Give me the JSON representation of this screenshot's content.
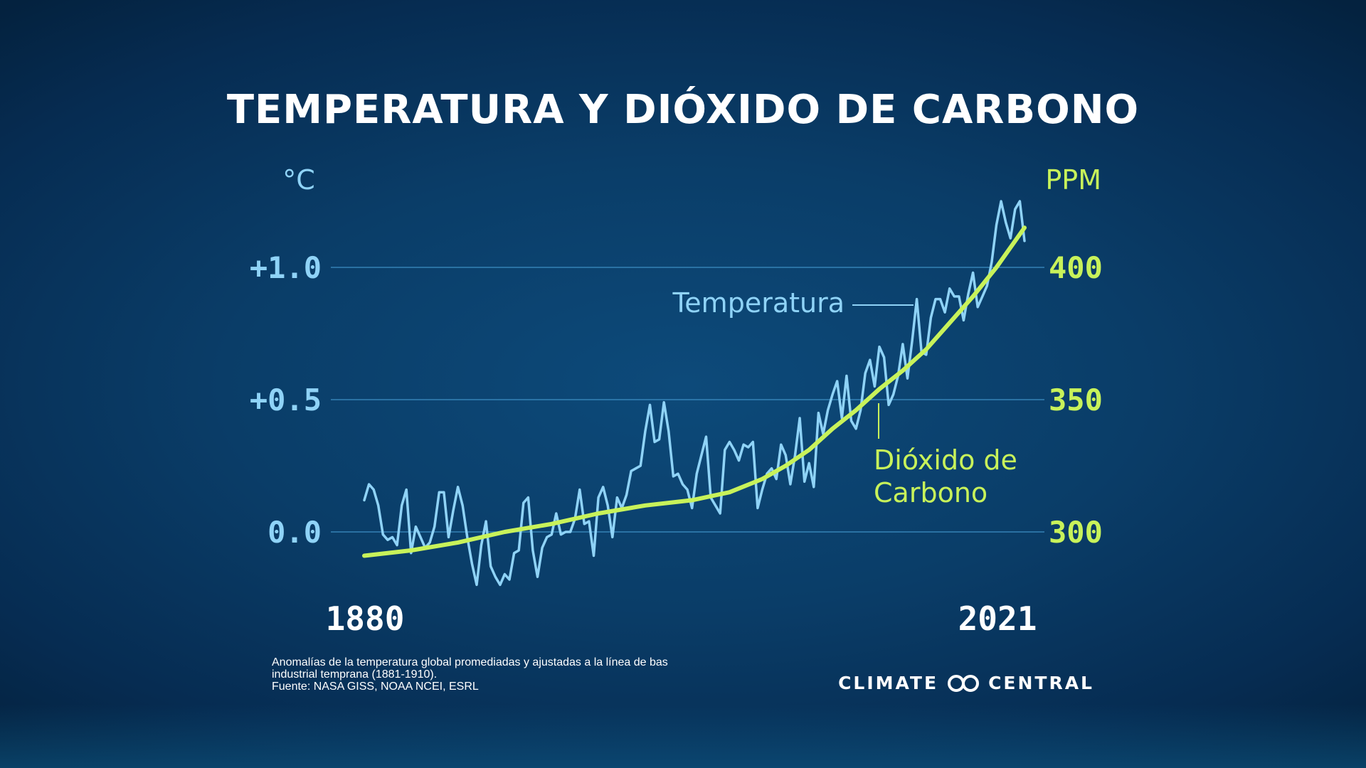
{
  "chart_data": {
    "type": "line",
    "title": "TEMPERATURA Y DIÓXIDO DE CARBONO",
    "y_left_unit": "°C",
    "y_right_unit": "PPM",
    "y_left_ticks": [
      "+1.0",
      "+0.5",
      "0.0"
    ],
    "y_left_tick_values": [
      1.0,
      0.5,
      0.0
    ],
    "y_right_ticks": [
      "400",
      "350",
      "300"
    ],
    "y_right_tick_values": [
      400,
      350,
      300
    ],
    "ylim_left": [
      -0.3,
      1.3
    ],
    "ylim_right": [
      270,
      430
    ],
    "xlim": [
      1880,
      2021
    ],
    "x_tick_labels": [
      "1880",
      "2021"
    ],
    "grid": true,
    "series": [
      {
        "name": "Temperatura",
        "axis": "left",
        "color": "#8fd3f7",
        "x": [
          1880,
          1881,
          1882,
          1883,
          1884,
          1885,
          1886,
          1887,
          1888,
          1889,
          1890,
          1891,
          1892,
          1893,
          1894,
          1895,
          1896,
          1897,
          1898,
          1899,
          1900,
          1901,
          1902,
          1903,
          1904,
          1905,
          1906,
          1907,
          1908,
          1909,
          1910,
          1911,
          1912,
          1913,
          1914,
          1915,
          1916,
          1917,
          1918,
          1919,
          1920,
          1921,
          1922,
          1923,
          1924,
          1925,
          1926,
          1927,
          1928,
          1929,
          1930,
          1931,
          1932,
          1933,
          1934,
          1935,
          1936,
          1937,
          1938,
          1939,
          1940,
          1941,
          1942,
          1943,
          1944,
          1945,
          1946,
          1947,
          1948,
          1949,
          1950,
          1951,
          1952,
          1953,
          1954,
          1955,
          1956,
          1957,
          1958,
          1959,
          1960,
          1961,
          1962,
          1963,
          1964,
          1965,
          1966,
          1967,
          1968,
          1969,
          1970,
          1971,
          1972,
          1973,
          1974,
          1975,
          1976,
          1977,
          1978,
          1979,
          1980,
          1981,
          1982,
          1983,
          1984,
          1985,
          1986,
          1987,
          1988,
          1989,
          1990,
          1991,
          1992,
          1993,
          1994,
          1995,
          1996,
          1997,
          1998,
          1999,
          2000,
          2001,
          2002,
          2003,
          2004,
          2005,
          2006,
          2007,
          2008,
          2009,
          2010,
          2011,
          2012,
          2013,
          2014,
          2015,
          2016,
          2017,
          2018,
          2019,
          2020,
          2021
        ],
        "y": [
          0.12,
          0.18,
          0.16,
          0.1,
          -0.01,
          -0.03,
          -0.02,
          -0.05,
          0.1,
          0.16,
          -0.08,
          0.02,
          -0.02,
          -0.06,
          -0.04,
          0.02,
          0.15,
          0.15,
          -0.02,
          0.08,
          0.17,
          0.1,
          -0.02,
          -0.12,
          -0.2,
          -0.05,
          0.04,
          -0.13,
          -0.17,
          -0.2,
          -0.16,
          -0.18,
          -0.08,
          -0.07,
          0.11,
          0.13,
          -0.07,
          -0.17,
          -0.06,
          -0.02,
          -0.01,
          0.07,
          -0.01,
          0.0,
          0.0,
          0.05,
          0.16,
          0.03,
          0.04,
          -0.09,
          0.13,
          0.17,
          0.1,
          -0.02,
          0.13,
          0.09,
          0.14,
          0.23,
          0.24,
          0.25,
          0.38,
          0.48,
          0.34,
          0.35,
          0.49,
          0.38,
          0.21,
          0.22,
          0.18,
          0.16,
          0.09,
          0.22,
          0.29,
          0.36,
          0.13,
          0.1,
          0.07,
          0.31,
          0.34,
          0.31,
          0.27,
          0.33,
          0.32,
          0.34,
          0.09,
          0.16,
          0.22,
          0.24,
          0.2,
          0.33,
          0.29,
          0.18,
          0.29,
          0.43,
          0.19,
          0.26,
          0.17,
          0.45,
          0.37,
          0.46,
          0.52,
          0.57,
          0.43,
          0.59,
          0.42,
          0.39,
          0.46,
          0.6,
          0.65,
          0.55,
          0.7,
          0.66,
          0.48,
          0.52,
          0.59,
          0.71,
          0.58,
          0.72,
          0.88,
          0.68,
          0.67,
          0.81,
          0.88,
          0.88,
          0.83,
          0.92,
          0.89,
          0.89,
          0.8,
          0.9,
          0.98,
          0.85,
          0.89,
          0.93,
          1.02,
          1.16,
          1.25,
          1.17,
          1.11,
          1.22,
          1.25,
          1.1
        ]
      },
      {
        "name": "Dióxido de Carbono",
        "label_lines": [
          "Dióxido de",
          "Carbono"
        ],
        "axis": "right",
        "color": "#c8f25a",
        "x": [
          1880,
          1890,
          1900,
          1910,
          1920,
          1930,
          1940,
          1950,
          1958,
          1965,
          1970,
          1975,
          1980,
          1985,
          1990,
          1995,
          2000,
          2005,
          2010,
          2015,
          2021
        ],
        "y": [
          291,
          293,
          296,
          300,
          303,
          307,
          310,
          312,
          315,
          320,
          325,
          331,
          339,
          346,
          354,
          361,
          369,
          379,
          389,
          400,
          415
        ]
      }
    ]
  },
  "footnote": {
    "line1": "Anomalías de la temperatura global promediadas y ajustadas a la línea de bas",
    "line2": "industrial temprana (1881-1910).",
    "line3": "Fuente: NASA GISS, NOAA NCEI, ESRL"
  },
  "logo": {
    "left": "CLIMATE",
    "right": "CENTRAL",
    "icon": "infinity-rings-icon"
  }
}
